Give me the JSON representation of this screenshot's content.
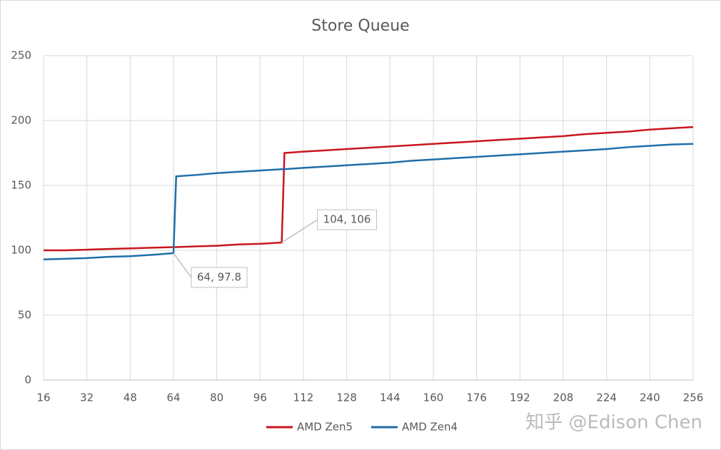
{
  "chart_data": {
    "type": "line",
    "title": "Store Queue",
    "x": [
      16,
      24,
      32,
      40,
      48,
      56,
      64,
      65,
      72,
      80,
      88,
      96,
      104,
      105,
      112,
      120,
      128,
      136,
      144,
      152,
      160,
      168,
      176,
      184,
      192,
      200,
      208,
      216,
      224,
      232,
      240,
      248,
      256
    ],
    "series": [
      {
        "name": "AMD Zen5",
        "color": "#c8161e",
        "values": [
          100,
          100,
          100.5,
          101,
          101.5,
          102,
          102.5,
          102.5,
          103,
          103.5,
          104.5,
          105,
          106,
          175,
          176,
          177,
          178,
          179,
          180,
          181,
          182,
          183,
          184,
          185,
          186,
          187,
          188,
          189.5,
          190.5,
          191.5,
          193,
          194,
          195
        ],
        "value_labels": [
          null,
          null,
          null,
          null,
          null,
          null,
          null,
          null,
          null,
          null,
          null,
          null,
          "104, 106",
          null,
          null,
          null,
          null,
          null,
          null,
          null,
          null,
          null,
          null,
          null,
          null,
          null,
          null,
          null,
          null,
          null,
          null,
          null,
          null
        ]
      },
      {
        "name": "AMD Zen4",
        "color": "#1f6ea8",
        "values": [
          93,
          93.5,
          94,
          95,
          95.5,
          96.5,
          97.8,
          157,
          158,
          159.5,
          160.5,
          161.5,
          162.5,
          162.5,
          163.5,
          164.5,
          165.5,
          166.5,
          167.5,
          169,
          170,
          171,
          172,
          173,
          174,
          175,
          176,
          177,
          178,
          179.5,
          180.5,
          181.5,
          182
        ],
        "value_labels": [
          null,
          null,
          null,
          null,
          null,
          null,
          "64, 97.8",
          null,
          null,
          null,
          null,
          null,
          null,
          null,
          null,
          null,
          null,
          null,
          null,
          null,
          null,
          null,
          null,
          null,
          null,
          null,
          null,
          null,
          null,
          null,
          null,
          null,
          null
        ]
      }
    ],
    "xlim": [
      16,
      256
    ],
    "xticks": [
      16,
      32,
      48,
      64,
      80,
      96,
      112,
      128,
      144,
      160,
      176,
      192,
      208,
      224,
      240,
      256
    ],
    "ylim": [
      0,
      250
    ],
    "yticks": [
      0,
      50,
      100,
      150,
      200,
      250
    ],
    "grid": true,
    "legend": "bottom",
    "watermark": "知乎 @Edison Chen"
  }
}
